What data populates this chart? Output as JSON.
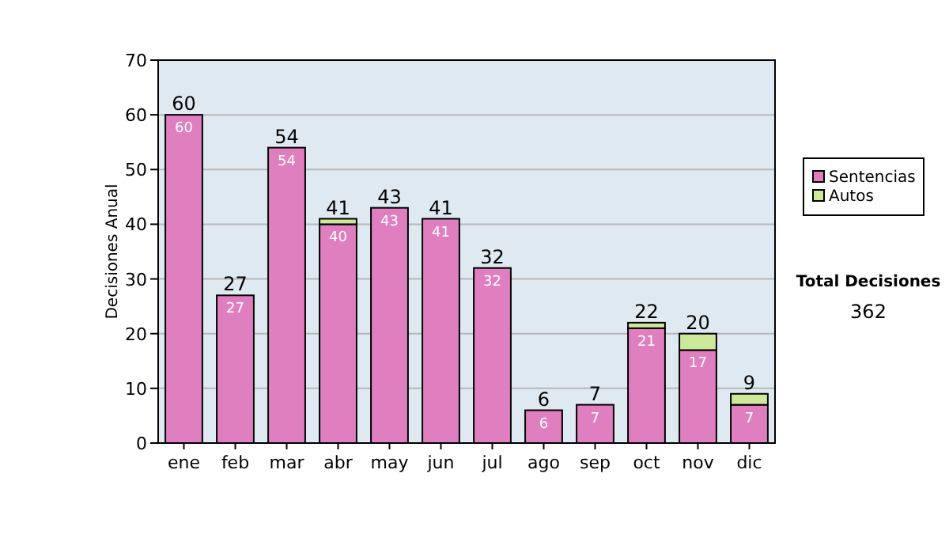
{
  "chart_data": {
    "type": "bar",
    "stacked": true,
    "ylabel": "Decisiones Anual",
    "categories": [
      "ene",
      "feb",
      "mar",
      "abr",
      "may",
      "jun",
      "jul",
      "ago",
      "sep",
      "oct",
      "nov",
      "dic"
    ],
    "series": [
      {
        "name": "Sentencias",
        "color": "#df7fc0",
        "values": [
          60,
          27,
          54,
          40,
          43,
          41,
          32,
          6,
          7,
          21,
          17,
          7
        ],
        "value_labels": [
          "60",
          "27",
          "54",
          "40",
          "43",
          "41",
          "32",
          "6",
          "7",
          "21",
          "17",
          "7"
        ]
      },
      {
        "name": "Autos",
        "color": "#cde89a",
        "values": [
          0,
          0,
          0,
          1,
          0,
          0,
          0,
          0,
          0,
          1,
          3,
          2
        ]
      }
    ],
    "totals": [
      "60",
      "27",
      "54",
      "41",
      "43",
      "41",
      "32",
      "6",
      "7",
      "22",
      "20",
      "9"
    ],
    "ylim": [
      0,
      70
    ],
    "yticks": [
      0,
      10,
      20,
      30,
      40,
      50,
      60,
      70
    ],
    "grid": "y",
    "legend": "right",
    "annotations": [
      "Total Decisiones",
      "362"
    ]
  }
}
